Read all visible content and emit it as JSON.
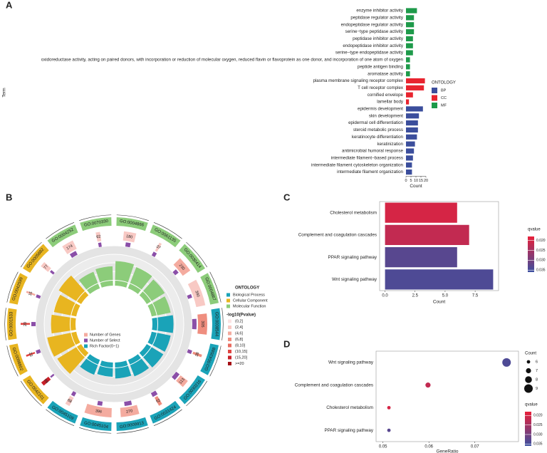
{
  "chart_data": [
    {
      "type": "hbar-group",
      "label": "A",
      "ylabel": "Term",
      "xlabel": "Count",
      "legend_title": "ONTOLOGY",
      "categories": [
        "enzyme inhibitor activity",
        "peptidase regulator activity",
        "endopeptidase regulator activity",
        "serine−type peptidase activity",
        "peptidase inhibitor activity",
        "endopeptidase inhibitor activity",
        "serine−type endopeptidase activity",
        "oxidoreductase activity, acting on paired donors, with incorporation or reduction of molecular oxygen, reduced flavin or flavoprotein as one donor, and incorporation of one atom of oxygen",
        "peptide antigen binding",
        "aromatase activity",
        "plasma membrane signaling receptor complex",
        "T cell receptor complex",
        "cornified envelope",
        "lamellar body",
        "epidermis development",
        "skin development",
        "epidermal cell differentiation",
        "steroid metabolic process",
        "keratinocyte differentiation",
        "keratinization",
        "antimicrobial humoral response",
        "intermediate filament−based process",
        "intermediate filament cytoskeleton organization",
        "intermediate filament organization"
      ],
      "series": [
        {
          "name": "BP",
          "color": "#3b4e9c",
          "values": [
            null,
            null,
            null,
            null,
            null,
            null,
            null,
            null,
            null,
            null,
            null,
            null,
            null,
            null,
            17,
            13,
            12,
            12,
            11,
            9,
            8,
            7,
            6,
            6
          ]
        },
        {
          "name": "CC",
          "color": "#e8242f",
          "values": [
            null,
            null,
            null,
            null,
            null,
            null,
            null,
            null,
            null,
            null,
            19,
            18,
            7,
            3,
            null,
            null,
            null,
            null,
            null,
            null,
            null,
            null,
            null,
            null
          ]
        },
        {
          "name": "MF",
          "color": "#1e9a4a",
          "values": [
            11,
            8,
            8,
            8,
            7,
            7,
            7,
            4,
            4,
            4,
            null,
            null,
            null,
            null,
            null,
            null,
            null,
            null,
            null,
            null,
            null,
            null,
            null,
            null
          ]
        }
      ],
      "xlim": [
        0,
        20
      ],
      "xticks": [
        0,
        5,
        10,
        15,
        20
      ]
    },
    {
      "type": "circos",
      "label": "B",
      "legend_title": "ONTOLOGY",
      "ontologies": [
        {
          "name": "Biological Process",
          "code": "BP",
          "color": "#1aa3b8"
        },
        {
          "name": "Cellular Component",
          "code": "CC",
          "color": "#e8b520"
        },
        {
          "name": "Molecular Function",
          "code": "MF",
          "color": "#8ccc7a"
        }
      ],
      "pvalue_title": "-log10(Pvalue)",
      "pvalue_bins": [
        {
          "label": "(0,2]",
          "min": 0,
          "color": "#fbe3e3"
        },
        {
          "label": "(2,4]",
          "min": 2,
          "color": "#f8c9c4"
        },
        {
          "label": "(4,6]",
          "min": 4,
          "color": "#f4ab9f"
        },
        {
          "label": "(6,8]",
          "min": 6,
          "color": "#ef8e7f"
        },
        {
          "label": "(8,10]",
          "min": 8,
          "color": "#e96b5f"
        },
        {
          "label": "(10,15]",
          "min": 10,
          "color": "#e04440"
        },
        {
          "label": "(15,20]",
          "min": 15,
          "color": "#c92129"
        },
        {
          "label": ">=20",
          "min": 20,
          "color": "#a50f15"
        }
      ],
      "inner_legend": [
        {
          "name": "Number of Genes",
          "color": "#f4ab9f"
        },
        {
          "name": "Number of Select",
          "color": "#8b4fa8"
        },
        {
          "name": "Rich Factor(0~1)",
          "color": "#1aa3b8"
        }
      ],
      "sectors": [
        {
          "id": "GO:0004866",
          "ontology": "MF",
          "genes": 180,
          "select": 8,
          "rich": 0.55,
          "plog": 3
        },
        {
          "id": "GO:0061135",
          "ontology": "MF",
          "genes": 37,
          "select": 6,
          "rich": 0.5,
          "plog": 3
        },
        {
          "id": "GO:0030414",
          "ontology": "MF",
          "genes": 230,
          "select": 7,
          "rich": 0.45,
          "plog": 5
        },
        {
          "id": "GO:0004867",
          "ontology": "MF",
          "genes": 390,
          "select": 6,
          "rich": 0.4,
          "plog": 3
        },
        {
          "id": "GO:0008544",
          "ontology": "BP",
          "genes": 305,
          "select": 17,
          "rich": 0.45,
          "plog": 7
        },
        {
          "id": "GO:0043588",
          "ontology": "BP",
          "genes": 38,
          "select": 6,
          "rich": 0.4,
          "plog": 7
        },
        {
          "id": "GO:0030216",
          "ontology": "BP",
          "genes": 113,
          "select": 12,
          "rich": 0.4,
          "plog": 5
        },
        {
          "id": "GO:0031424",
          "ontology": "BP",
          "genes": 52,
          "select": 9,
          "rich": 0.35,
          "plog": 7
        },
        {
          "id": "GO:0009913",
          "ontology": "BP",
          "genes": 270,
          "select": 12,
          "rich": 0.3,
          "plog": 5
        },
        {
          "id": "GO:0045104",
          "ontology": "BP",
          "genes": 396,
          "select": 8,
          "rich": 0.25,
          "plog": 5
        },
        {
          "id": "GO:0045109",
          "ontology": "BP",
          "genes": 68,
          "select": 6,
          "rich": 0.3,
          "plog": 3
        },
        {
          "id": "GO:0042101",
          "ontology": "CC",
          "genes": 59,
          "select": 3,
          "rich": 0.65,
          "plog": 17
        },
        {
          "id": "GO:0098802",
          "ontology": "CC",
          "genes": 23,
          "select": 6,
          "rich": 0.7,
          "plog": 12
        },
        {
          "id": "GO:0001533",
          "ontology": "CC",
          "genes": 20,
          "select": 7,
          "rich": 0.55,
          "plog": 11
        },
        {
          "id": "GO:0042599",
          "ontology": "CC",
          "genes": 15,
          "select": 5,
          "rich": 0.5,
          "plog": 5
        },
        {
          "id": "GO:0005882",
          "ontology": "CC",
          "genes": 77,
          "select": 4,
          "rich": 0.6,
          "plog": 3
        },
        {
          "id": "GO:0004252",
          "ontology": "MF",
          "genes": 174,
          "select": 11,
          "rich": 0.35,
          "plog": 3
        },
        {
          "id": "GO:0070330",
          "ontology": "MF",
          "genes": 62,
          "select": 5,
          "rich": 0.4,
          "plog": 3
        }
      ]
    },
    {
      "type": "hbar-q",
      "label": "C",
      "xlabel": "Count",
      "color_title": "qvalue",
      "categories": [
        "Cholesterol metabolism",
        "Complement and coagulation cascades",
        "PPAR signaling pathway",
        "Wnt signaling pathway"
      ],
      "values": [
        6,
        7,
        6,
        9
      ],
      "qvalues": [
        0.02,
        0.022,
        0.033,
        0.034
      ],
      "xlim": [
        -0.45,
        9.45
      ],
      "xticks": [
        {
          "value": 0,
          "label": "0.0"
        },
        {
          "value": 2.5,
          "label": "2.5"
        },
        {
          "value": 5,
          "label": "5.0"
        },
        {
          "value": 7.5,
          "label": "7.5"
        }
      ],
      "colorlim": [
        0.018,
        0.036
      ],
      "colors": [
        "#e8203a",
        "#3b4fa0"
      ],
      "cticks": [
        {
          "value": 0.02,
          "label": "0.020"
        },
        {
          "value": 0.025,
          "label": "0.025"
        },
        {
          "value": 0.03,
          "label": "0.030"
        },
        {
          "value": 0.035,
          "label": "0.035"
        }
      ]
    },
    {
      "type": "dot",
      "label": "D",
      "xlabel": "GeneRatio",
      "size_title": "Count",
      "color_title": "qvalue",
      "categories": [
        "Wnt signaling pathway",
        "Complement and coagulation cascades",
        "Cholesterol metabolism",
        "PPAR signaling pathway"
      ],
      "x": [
        0.0769,
        0.0598,
        0.0513,
        0.0513
      ],
      "sizes": [
        9,
        7,
        6,
        6
      ],
      "qvalues": [
        0.034,
        0.022,
        0.02,
        0.033
      ],
      "xlim": [
        0.0485,
        0.0795
      ],
      "xticks": [
        0.05,
        0.06,
        0.07
      ],
      "size_ticks": [
        6,
        7,
        8,
        9
      ],
      "colorlim": [
        0.018,
        0.036
      ],
      "colors": [
        "#e8203a",
        "#3b4fa0"
      ],
      "cticks": [
        {
          "value": 0.02,
          "label": "0.020"
        },
        {
          "value": 0.025,
          "label": "0.025"
        },
        {
          "value": 0.03,
          "label": "0.030"
        },
        {
          "value": 0.035,
          "label": "0.035"
        }
      ]
    }
  ]
}
